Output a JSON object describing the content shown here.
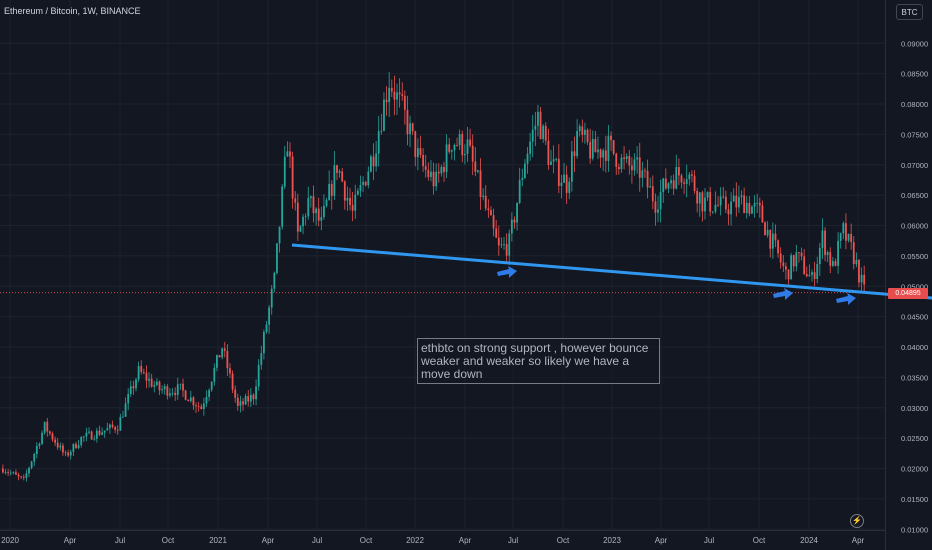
{
  "header": {
    "title": "Ethereum / Bitcoin, 1W, BINANCE",
    "currency_button": "BTC"
  },
  "price_tag": "0.04895",
  "annotation_text": "ethbtc on strong support , however bounce weaker and weaker so likely we have a move down",
  "icons": {
    "bolt": "lightning-bolt-icon"
  },
  "colors": {
    "up": "#26a69a",
    "down": "#ef5350",
    "support_line": "#2f97f0",
    "arrows": "#2f7be8",
    "price_line": "#e84d4d"
  },
  "chart_data": {
    "type": "candlestick",
    "title": "Ethereum / Bitcoin, 1W, BINANCE",
    "ylim": [
      0.01,
      0.093
    ],
    "y_ticks": [
      "0.01000",
      "0.01500",
      "0.02000",
      "0.02500",
      "0.03000",
      "0.03500",
      "0.04000",
      "0.04500",
      "0.05000",
      "0.05500",
      "0.06000",
      "0.06500",
      "0.07000",
      "0.07500",
      "0.08000",
      "0.08500",
      "0.09000"
    ],
    "x_ticks": [
      "2020",
      "Apr",
      "Jul",
      "Oct",
      "2021",
      "Apr",
      "Jul",
      "Oct",
      "2022",
      "Apr",
      "Jul",
      "Oct",
      "2023",
      "Apr",
      "Jul",
      "Oct",
      "2024",
      "Apr"
    ],
    "last_price": 0.04895,
    "close_path": [
      {
        "t": 0,
        "v": 0.02
      },
      {
        "t": 8,
        "v": 0.018
      },
      {
        "t": 16,
        "v": 0.027
      },
      {
        "t": 24,
        "v": 0.022
      },
      {
        "t": 30,
        "v": 0.025
      },
      {
        "t": 44,
        "v": 0.027
      },
      {
        "t": 52,
        "v": 0.036
      },
      {
        "t": 60,
        "v": 0.033
      },
      {
        "t": 68,
        "v": 0.033
      },
      {
        "t": 76,
        "v": 0.03
      },
      {
        "t": 84,
        "v": 0.04
      },
      {
        "t": 90,
        "v": 0.03
      },
      {
        "t": 96,
        "v": 0.032
      },
      {
        "t": 104,
        "v": 0.051
      },
      {
        "t": 109,
        "v": 0.074
      },
      {
        "t": 113,
        "v": 0.058
      },
      {
        "t": 117,
        "v": 0.064
      },
      {
        "t": 122,
        "v": 0.06
      },
      {
        "t": 128,
        "v": 0.07
      },
      {
        "t": 134,
        "v": 0.062
      },
      {
        "t": 142,
        "v": 0.072
      },
      {
        "t": 148,
        "v": 0.084
      },
      {
        "t": 154,
        "v": 0.078
      },
      {
        "t": 160,
        "v": 0.07
      },
      {
        "t": 166,
        "v": 0.067
      },
      {
        "t": 172,
        "v": 0.074
      },
      {
        "t": 178,
        "v": 0.073
      },
      {
        "t": 184,
        "v": 0.064
      },
      {
        "t": 190,
        "v": 0.056
      },
      {
        "t": 194,
        "v": 0.057
      },
      {
        "t": 200,
        "v": 0.071
      },
      {
        "t": 205,
        "v": 0.078
      },
      {
        "t": 210,
        "v": 0.07
      },
      {
        "t": 216,
        "v": 0.067
      },
      {
        "t": 220,
        "v": 0.075
      },
      {
        "t": 226,
        "v": 0.072
      },
      {
        "t": 232,
        "v": 0.073
      },
      {
        "t": 238,
        "v": 0.07
      },
      {
        "t": 244,
        "v": 0.069
      },
      {
        "t": 250,
        "v": 0.064
      },
      {
        "t": 256,
        "v": 0.068
      },
      {
        "t": 262,
        "v": 0.069
      },
      {
        "t": 268,
        "v": 0.064
      },
      {
        "t": 276,
        "v": 0.063
      },
      {
        "t": 284,
        "v": 0.064
      },
      {
        "t": 290,
        "v": 0.062
      },
      {
        "t": 294,
        "v": 0.058
      },
      {
        "t": 300,
        "v": 0.052
      },
      {
        "t": 304,
        "v": 0.055
      },
      {
        "t": 310,
        "v": 0.051
      },
      {
        "t": 314,
        "v": 0.058
      },
      {
        "t": 318,
        "v": 0.053
      },
      {
        "t": 322,
        "v": 0.059
      },
      {
        "t": 326,
        "v": 0.055
      },
      {
        "t": 330,
        "v": 0.049
      }
    ]
  }
}
